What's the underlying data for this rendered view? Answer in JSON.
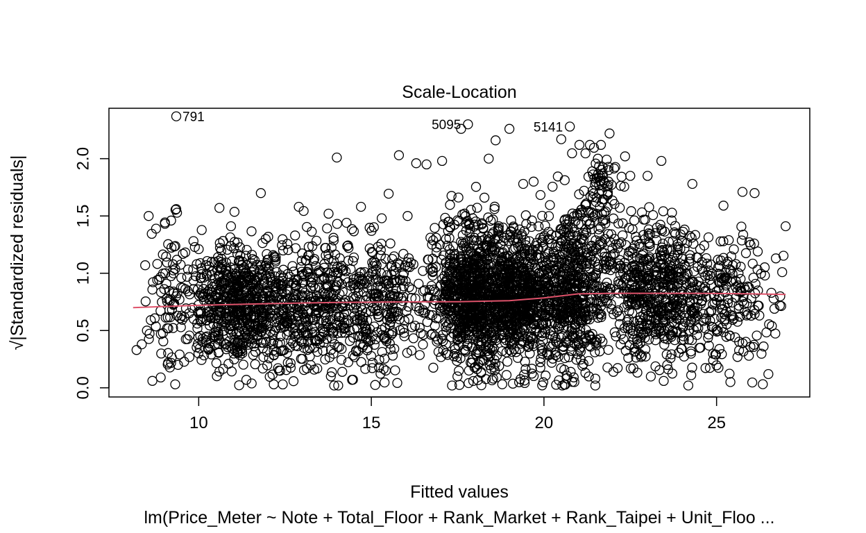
{
  "chart_data": {
    "type": "scatter",
    "title": "Scale-Location",
    "xlabel": "Fitted values",
    "ylabel": "√|Standardized residuals|",
    "caption": "lm(Price_Meter ~ Note + Total_Floor + Rank_Market + Rank_Taipei + Unit_Floo ...",
    "xlim": [
      7.4,
      27.7
    ],
    "ylim": [
      -0.08,
      2.44
    ],
    "xticks": [
      "10",
      "15",
      "20",
      "25"
    ],
    "yticks": [
      "0.0",
      "0.5",
      "1.0",
      "1.5",
      "2.0"
    ],
    "grid": false,
    "marker": "open-circle",
    "marker_color": "#000000",
    "smooth_color": "#DF536B",
    "labeled_points": [
      {
        "label": "791",
        "x": 9.35,
        "y": 2.37
      },
      {
        "label": "5095",
        "x": 17.8,
        "y": 2.3
      },
      {
        "label": "5141",
        "x": 20.75,
        "y": 2.28
      }
    ],
    "smooth_line": {
      "x": [
        8.1,
        10.0,
        12.0,
        14.0,
        16.0,
        17.5,
        19.0,
        20.0,
        21.0,
        22.0,
        23.0,
        24.0,
        25.0,
        26.0,
        27.0
      ],
      "y": [
        0.7,
        0.72,
        0.735,
        0.745,
        0.75,
        0.752,
        0.76,
        0.785,
        0.82,
        0.825,
        0.825,
        0.825,
        0.823,
        0.82,
        0.815
      ]
    },
    "points": {
      "clusters": [
        {
          "cx": 11.2,
          "sx": 0.85,
          "cy": 0.72,
          "sy": 0.28,
          "n": 700
        },
        {
          "cx": 13.3,
          "sx": 0.75,
          "cy": 0.72,
          "sy": 0.28,
          "n": 350
        },
        {
          "cx": 15.2,
          "sx": 0.7,
          "cy": 0.72,
          "sy": 0.3,
          "n": 300
        },
        {
          "cx": 17.8,
          "sx": 0.55,
          "cy": 0.82,
          "sy": 0.32,
          "n": 750
        },
        {
          "cx": 19.3,
          "sx": 0.6,
          "cy": 0.78,
          "sy": 0.3,
          "n": 800
        },
        {
          "cx": 20.9,
          "sx": 0.45,
          "cy": 0.85,
          "sy": 0.36,
          "n": 500
        },
        {
          "cx": 21.6,
          "sx": 0.3,
          "cy": 1.8,
          "sy": 0.18,
          "n": 70
        },
        {
          "cx": 23.2,
          "sx": 0.7,
          "cy": 0.85,
          "sy": 0.3,
          "n": 550
        },
        {
          "cx": 25.2,
          "sx": 0.8,
          "cy": 0.75,
          "sy": 0.28,
          "n": 250
        },
        {
          "cx": 9.1,
          "sx": 0.35,
          "cy": 0.75,
          "sy": 0.35,
          "n": 70
        }
      ],
      "extra": [
        [
          8.2,
          0.33
        ],
        [
          8.35,
          0.38
        ],
        [
          8.5,
          0.5
        ],
        [
          8.45,
          1.07
        ],
        [
          8.55,
          1.5
        ],
        [
          14.0,
          2.01
        ],
        [
          15.8,
          2.03
        ],
        [
          16.3,
          1.96
        ],
        [
          19.0,
          2.26
        ],
        [
          18.6,
          2.16
        ],
        [
          17.6,
          2.26
        ],
        [
          20.5,
          2.17
        ],
        [
          21.9,
          2.22
        ],
        [
          22.35,
          2.02
        ],
        [
          23.4,
          1.98
        ],
        [
          26.1,
          1.7
        ],
        [
          25.75,
          1.71
        ],
        [
          27.0,
          1.41
        ],
        [
          26.9,
          1.01
        ],
        [
          26.6,
          0.54
        ],
        [
          26.5,
          0.12
        ],
        [
          25.2,
          1.59
        ],
        [
          25.95,
          1.27
        ],
        [
          11.8,
          1.7
        ],
        [
          12.9,
          1.58
        ],
        [
          14.7,
          1.58
        ],
        [
          16.6,
          1.95
        ],
        [
          17.05,
          1.98
        ],
        [
          18.4,
          2.0
        ],
        [
          24.3,
          1.78
        ],
        [
          26.4,
          0.98
        ],
        [
          26.2,
          0.85
        ],
        [
          9.2,
          1.46
        ],
        [
          9.35,
          1.56
        ],
        [
          10.6,
          1.57
        ],
        [
          8.9,
          0.09
        ],
        [
          9.4,
          0.2
        ],
        [
          25.4,
          0.05
        ],
        [
          22.5,
          1.85
        ],
        [
          23.0,
          1.85
        ],
        [
          16.05,
          1.5
        ],
        [
          15.3,
          1.48
        ],
        [
          19.4,
          1.78
        ],
        [
          19.7,
          1.8
        ]
      ],
      "seed": 42,
      "y_bounds": [
        0.02,
        2.12
      ]
    }
  }
}
